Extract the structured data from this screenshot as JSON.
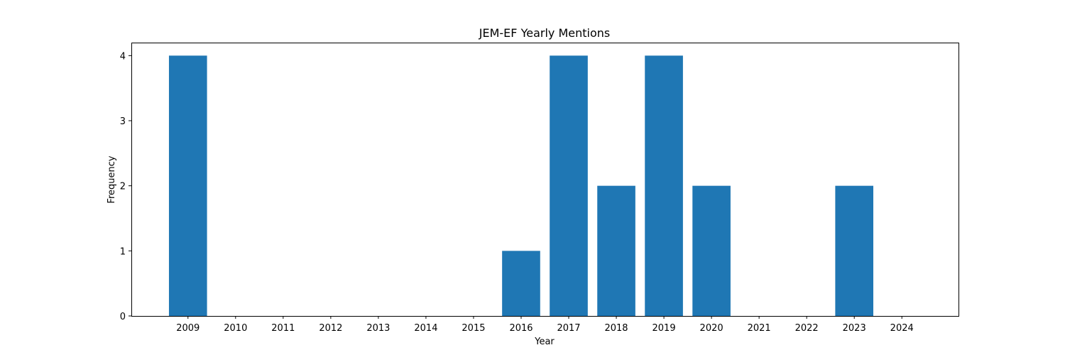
{
  "chart_data": {
    "type": "bar",
    "title": "JEM-EF Yearly Mentions",
    "xlabel": "Year",
    "ylabel": "Frequency",
    "categories": [
      "2009",
      "2010",
      "2011",
      "2012",
      "2013",
      "2014",
      "2015",
      "2016",
      "2017",
      "2018",
      "2019",
      "2020",
      "2021",
      "2022",
      "2023",
      "2024"
    ],
    "values": [
      4,
      0,
      0,
      0,
      0,
      0,
      0,
      1,
      4,
      2,
      4,
      2,
      0,
      0,
      2,
      0
    ],
    "ylim": [
      0,
      4.2
    ],
    "yticks": [
      "0",
      "1",
      "2",
      "3",
      "4"
    ],
    "grid": false,
    "bar_color": "#1f77b4"
  }
}
